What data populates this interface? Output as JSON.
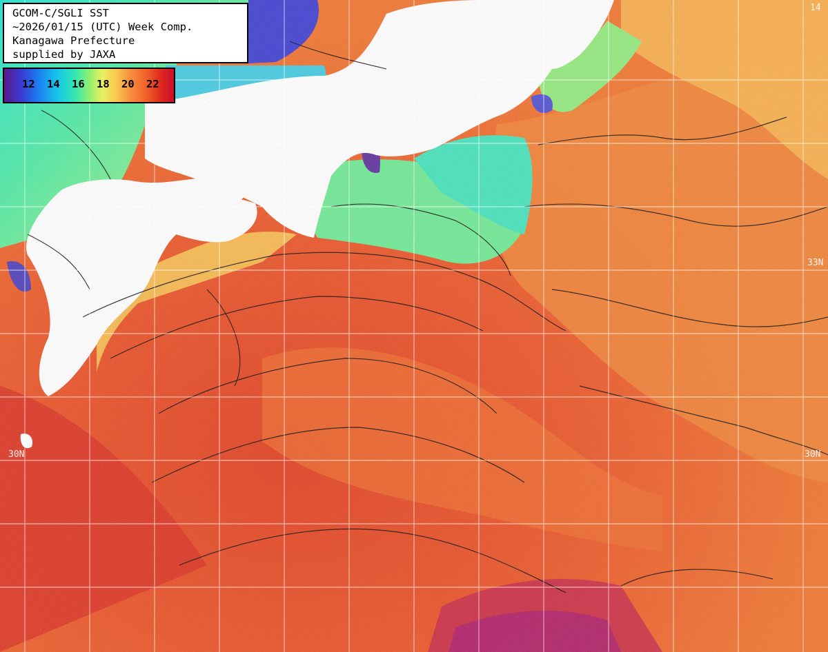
{
  "header": {
    "lines": [
      "GCOM-C/SGLI SST",
      "~2026/01/15 (UTC) Week Comp.",
      "Kanagawa Prefecture",
      "supplied by JAXA"
    ]
  },
  "legend": {
    "ticks": [
      "12",
      "14",
      "16",
      "18",
      "20",
      "22"
    ],
    "gradient_colors": [
      "#5a1a8a",
      "#3a3ad0",
      "#1a7ef0",
      "#18c8e8",
      "#36e8b0",
      "#8ef070",
      "#e8f060",
      "#f8c850",
      "#f89040",
      "#f06028",
      "#e02a20",
      "#c8102a"
    ]
  },
  "map": {
    "lat_labels": [
      "30N",
      "30N",
      "33N",
      "14"
    ],
    "land_color": "#ffffff",
    "grid_color": "#ffffff",
    "contour_color": "#000000"
  }
}
